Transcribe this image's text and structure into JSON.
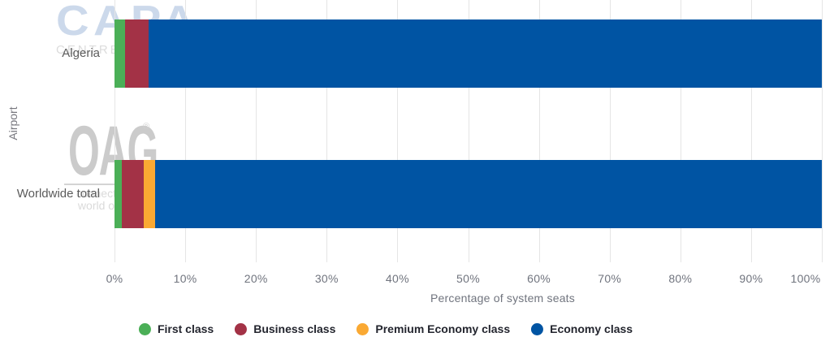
{
  "watermarks": {
    "capa": {
      "title": "CAPA",
      "subtitle": "CENTRE FOR AVIATION"
    },
    "oag": {
      "title": "OAG",
      "registered": "®",
      "tagline_line1": "connecting the",
      "tagline_line2": "world of travel"
    }
  },
  "chart_data": {
    "type": "bar",
    "orientation": "horizontal",
    "stacked": true,
    "title": "",
    "xlabel": "Percentage of system seats",
    "ylabel": "Airport",
    "xlim": [
      0,
      100
    ],
    "grid": true,
    "legend_position": "bottom",
    "x_ticks": [
      "0%",
      "10%",
      "20%",
      "30%",
      "40%",
      "50%",
      "60%",
      "70%",
      "80%",
      "90%",
      "100%"
    ],
    "categories": [
      "Algeria",
      "Worldwide total"
    ],
    "series": [
      {
        "name": "First class",
        "color": "#4BAF57",
        "values": [
          1.5,
          1.0
        ]
      },
      {
        "name": "Business class",
        "color": "#A33246",
        "values": [
          3.3,
          3.1
        ]
      },
      {
        "name": "Premium Economy class",
        "color": "#FAA933",
        "values": [
          0,
          1.7
        ]
      },
      {
        "name": "Economy class",
        "color": "#0054A3",
        "values": [
          95.2,
          94.2
        ]
      }
    ]
  },
  "colors": {
    "gridline": "#e5e5e5",
    "tick_text": "#70747e",
    "category_text": "#5b5b5b",
    "legend_text": "#23252e",
    "capa_watermark": "#ccd9eb",
    "oag_watermark": "#cbcbcb"
  }
}
